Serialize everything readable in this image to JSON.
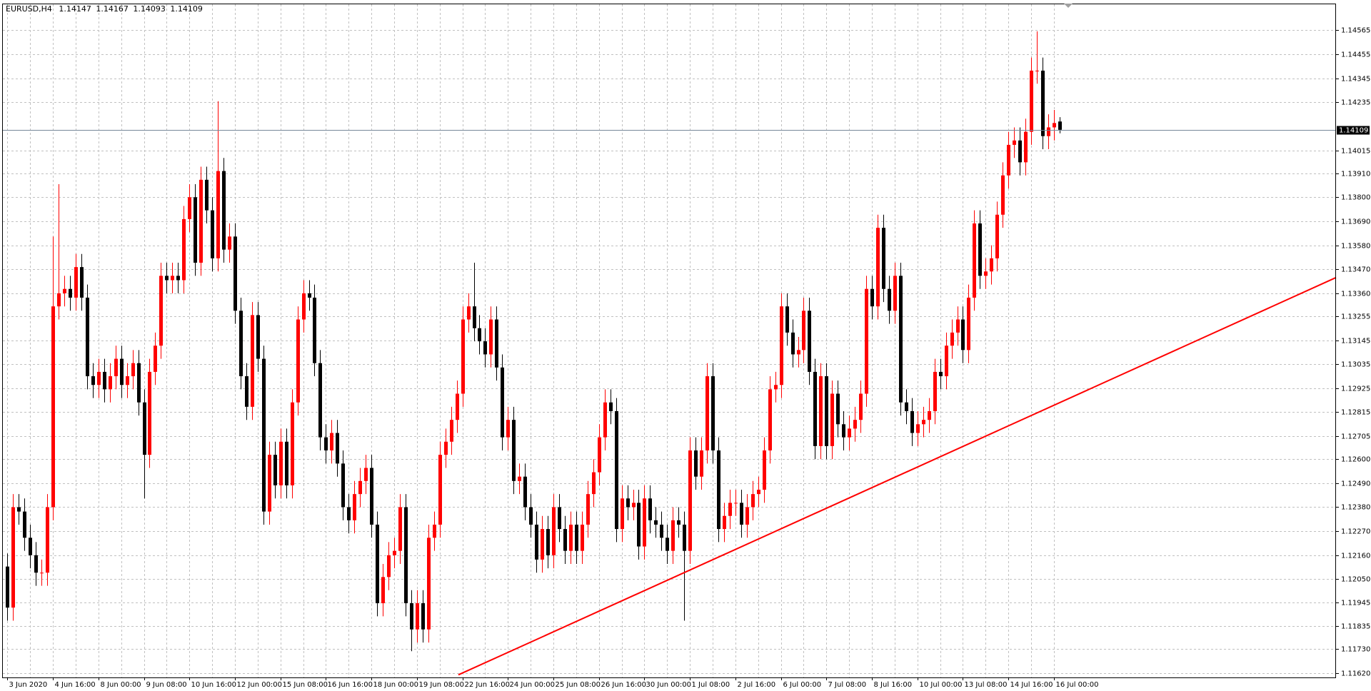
{
  "chart_data": {
    "type": "candlestick",
    "title": "EURUSD,H4",
    "up_color": "#ff0000",
    "down_color": "#000000",
    "grid": true,
    "grid_color": "#c0c0c0",
    "price_line_color": "#778899",
    "categories": [
      "3 Jun 2020",
      null,
      null,
      null,
      null,
      null,
      null,
      null,
      "4 Jun 16:00",
      null,
      null,
      null,
      null,
      null,
      null,
      null,
      "8 Jun 00:00",
      null,
      null,
      null,
      null,
      null,
      null,
      null,
      "9 Jun 08:00",
      null,
      null,
      null,
      null,
      null,
      null,
      null,
      "10 Jun 16:00",
      null,
      null,
      null,
      null,
      null,
      null,
      null,
      "12 Jun 00:00",
      null,
      null,
      null,
      null,
      null,
      null,
      null,
      "15 Jun 08:00",
      null,
      null,
      null,
      null,
      null,
      null,
      null,
      "16 Jun 16:00",
      null,
      null,
      null,
      null,
      null,
      null,
      null,
      "18 Jun 00:00",
      null,
      null,
      null,
      null,
      null,
      null,
      null,
      "19 Jun 08:00",
      null,
      null,
      null,
      null,
      null,
      null,
      null,
      "22 Jun 16:00",
      null,
      null,
      null,
      null,
      null,
      null,
      null,
      "24 Jun 00:00",
      null,
      null,
      null,
      null,
      null,
      null,
      null,
      "25 Jun 08:00",
      null,
      null,
      null,
      null,
      null,
      null,
      null,
      "26 Jun 16:00",
      null,
      null,
      null,
      null,
      null,
      null,
      null,
      "30 Jun 00:00",
      null,
      null,
      null,
      null,
      null,
      null,
      null,
      "1 Jul 08:00",
      null,
      null,
      null,
      null,
      null,
      null,
      null,
      "2 Jul 16:00",
      null,
      null,
      null,
      null,
      null,
      null,
      null,
      "6 Jul 00:00",
      null,
      null,
      null,
      null,
      null,
      null,
      null,
      "7 Jul 08:00",
      null,
      null,
      null,
      null,
      null,
      null,
      null,
      "8 Jul 16:00",
      null,
      null,
      null,
      null,
      null,
      null,
      null,
      "10 Jul 00:00",
      null,
      null,
      null,
      null,
      null,
      null,
      null,
      "13 Jul 08:00",
      null,
      null,
      null,
      null,
      null,
      null,
      null,
      "14 Jul 16:00",
      null,
      null,
      null,
      null,
      null,
      null,
      null,
      "16 Jul 00:00",
      null
    ],
    "open": [
      1.12108,
      1.1192,
      1.1238,
      1.1236,
      1.1224,
      1.1216,
      1.1208,
      1.1208,
      1.1238,
      1.133,
      1.1336,
      1.1338,
      1.1334,
      1.1348,
      1.1334,
      1.1298,
      1.1294,
      1.13,
      1.1292,
      1.1298,
      1.1306,
      1.1294,
      1.1298,
      1.1304,
      1.1286,
      1.1262,
      1.13,
      1.1312,
      1.1344,
      1.1342,
      1.1344,
      1.1342,
      1.137,
      1.138,
      1.135,
      1.1388,
      1.1374,
      1.1352,
      1.1392,
      1.1356,
      1.1362,
      1.1328,
      1.1298,
      1.1284,
      1.1326,
      1.1306,
      1.1236,
      1.1262,
      1.1248,
      1.1268,
      1.1248,
      1.1286,
      1.1324,
      1.1336,
      1.1334,
      1.1304,
      1.127,
      1.1264,
      1.1272,
      1.1258,
      1.1238,
      1.1232,
      1.1244,
      1.125,
      1.1256,
      1.123,
      1.1194,
      1.1206,
      1.1216,
      1.1218,
      1.1238,
      1.1194,
      1.1182,
      1.1194,
      1.1182,
      1.1224,
      1.123,
      1.1262,
      1.1268,
      1.1278,
      1.129,
      1.1324,
      1.133,
      1.132,
      1.1314,
      1.1308,
      1.1324,
      1.1302,
      1.127,
      1.1278,
      1.125,
      1.1252,
      1.1238,
      1.123,
      1.1214,
      1.1228,
      1.1216,
      1.1238,
      1.1228,
      1.1218,
      1.123,
      1.1218,
      1.123,
      1.1244,
      1.1254,
      1.127,
      1.1286,
      1.1282,
      1.1228,
      1.1242,
      1.1238,
      1.124,
      1.122,
      1.1242,
      1.1232,
      1.123,
      1.1224,
      1.1218,
      1.1232,
      1.123,
      1.1218,
      1.1264,
      1.1252,
      1.1264,
      1.1298,
      1.1264,
      1.1228,
      1.1234,
      1.124,
      1.124,
      1.123,
      1.1238,
      1.1244,
      1.1246,
      1.1264,
      1.1292,
      1.1294,
      1.133,
      1.1318,
      1.1308,
      1.131,
      1.1328,
      1.13,
      1.1266,
      1.1298,
      1.1266,
      1.129,
      1.1276,
      1.127,
      1.1274,
      1.1278,
      1.129,
      1.1338,
      1.133,
      1.1366,
      1.1338,
      1.1328,
      1.1344,
      1.1286,
      1.1282,
      1.1272,
      1.1276,
      1.1278,
      1.1282,
      1.13,
      1.1298,
      1.1312,
      1.1318,
      1.1324,
      1.131,
      1.1334,
      1.1368,
      1.1344,
      1.1346,
      1.1352,
      1.1372,
      1.139,
      1.1404,
      1.1406,
      1.1396,
      1.141,
      1.1438,
      1.1438,
      1.1408,
      1.1412,
      1.14147
    ],
    "high": [
      1.12168,
      1.1244,
      1.1244,
      1.1242,
      1.123,
      1.1222,
      1.1214,
      1.1244,
      1.1362,
      1.1386,
      1.1344,
      1.1344,
      1.1354,
      1.1354,
      1.134,
      1.1304,
      1.1306,
      1.1306,
      1.1304,
      1.1312,
      1.1312,
      1.1304,
      1.131,
      1.131,
      1.1292,
      1.1306,
      1.1318,
      1.135,
      1.135,
      1.135,
      1.135,
      1.1376,
      1.1386,
      1.1386,
      1.1394,
      1.1394,
      1.138,
      1.1424,
      1.1398,
      1.1368,
      1.1368,
      1.1334,
      1.1304,
      1.1332,
      1.1332,
      1.1312,
      1.1268,
      1.1268,
      1.1274,
      1.1274,
      1.1292,
      1.133,
      1.1342,
      1.1342,
      1.134,
      1.131,
      1.1276,
      1.1278,
      1.1278,
      1.1264,
      1.1244,
      1.125,
      1.1256,
      1.1262,
      1.1262,
      1.1236,
      1.1212,
      1.1222,
      1.1224,
      1.1244,
      1.1244,
      1.12,
      1.12,
      1.12,
      1.123,
      1.1236,
      1.1268,
      1.1274,
      1.1284,
      1.1296,
      1.133,
      1.1336,
      1.135,
      1.1326,
      1.132,
      1.133,
      1.133,
      1.1308,
      1.1284,
      1.1284,
      1.1258,
      1.1258,
      1.1244,
      1.1236,
      1.1234,
      1.1234,
      1.1244,
      1.1244,
      1.1234,
      1.1236,
      1.1236,
      1.1236,
      1.125,
      1.126,
      1.1276,
      1.1292,
      1.1292,
      1.1288,
      1.1248,
      1.1248,
      1.1246,
      1.1246,
      1.1248,
      1.1248,
      1.1238,
      1.1236,
      1.123,
      1.1238,
      1.1238,
      1.1236,
      1.127,
      1.127,
      1.127,
      1.1304,
      1.1304,
      1.127,
      1.124,
      1.1246,
      1.1246,
      1.1246,
      1.1244,
      1.125,
      1.1252,
      1.127,
      1.1298,
      1.13,
      1.1336,
      1.1336,
      1.1324,
      1.1316,
      1.1334,
      1.1334,
      1.1306,
      1.1304,
      1.1304,
      1.1296,
      1.1296,
      1.1282,
      1.128,
      1.1284,
      1.1296,
      1.1344,
      1.1344,
      1.1372,
      1.1372,
      1.1344,
      1.135,
      1.135,
      1.1292,
      1.1288,
      1.1282,
      1.1284,
      1.1288,
      1.1306,
      1.1306,
      1.1318,
      1.1324,
      1.133,
      1.133,
      1.134,
      1.1374,
      1.1374,
      1.1352,
      1.1358,
      1.1378,
      1.1396,
      1.141,
      1.1412,
      1.1412,
      1.1416,
      1.1444,
      1.1456,
      1.1444,
      1.1418,
      1.142,
      1.14167
    ],
    "low": [
      1.1186,
      1.1186,
      1.123,
      1.1218,
      1.121,
      1.1202,
      1.1202,
      1.1202,
      1.1232,
      1.1324,
      1.133,
      1.1328,
      1.1328,
      1.1328,
      1.1292,
      1.1288,
      1.1288,
      1.1286,
      1.1286,
      1.1292,
      1.1288,
      1.1288,
      1.1292,
      1.128,
      1.1242,
      1.1256,
      1.1294,
      1.1306,
      1.1336,
      1.1336,
      1.1336,
      1.1336,
      1.1364,
      1.1344,
      1.1344,
      1.1368,
      1.1346,
      1.1346,
      1.135,
      1.135,
      1.1322,
      1.1292,
      1.1278,
      1.1278,
      1.13,
      1.123,
      1.123,
      1.1242,
      1.1242,
      1.1242,
      1.1242,
      1.128,
      1.1318,
      1.1328,
      1.1298,
      1.1264,
      1.1258,
      1.1258,
      1.1252,
      1.1232,
      1.1226,
      1.1226,
      1.1238,
      1.1244,
      1.1224,
      1.1188,
      1.1188,
      1.12,
      1.121,
      1.1212,
      1.1188,
      1.1172,
      1.1176,
      1.1176,
      1.1176,
      1.1218,
      1.1224,
      1.1256,
      1.1262,
      1.1272,
      1.1284,
      1.1318,
      1.1314,
      1.1308,
      1.1302,
      1.1302,
      1.1296,
      1.1264,
      1.1264,
      1.1244,
      1.1244,
      1.1232,
      1.1224,
      1.1208,
      1.1208,
      1.121,
      1.121,
      1.1222,
      1.1212,
      1.1212,
      1.1212,
      1.1212,
      1.1224,
      1.1238,
      1.1248,
      1.1264,
      1.1276,
      1.1222,
      1.1222,
      1.1232,
      1.1232,
      1.1214,
      1.1214,
      1.1226,
      1.1224,
      1.1218,
      1.1212,
      1.1212,
      1.1224,
      1.1186,
      1.1212,
      1.1246,
      1.1246,
      1.1258,
      1.1258,
      1.1222,
      1.1222,
      1.1228,
      1.1234,
      1.1224,
      1.1224,
      1.1232,
      1.1238,
      1.124,
      1.1258,
      1.1286,
      1.1288,
      1.1312,
      1.1302,
      1.1302,
      1.1304,
      1.1294,
      1.126,
      1.126,
      1.126,
      1.126,
      1.127,
      1.1264,
      1.1264,
      1.1268,
      1.1272,
      1.1284,
      1.1324,
      1.1324,
      1.1332,
      1.1322,
      1.1322,
      1.128,
      1.1276,
      1.1266,
      1.1266,
      1.127,
      1.1272,
      1.1276,
      1.1292,
      1.1292,
      1.1306,
      1.1312,
      1.1304,
      1.1304,
      1.1328,
      1.1338,
      1.1338,
      1.134,
      1.1346,
      1.1366,
      1.1384,
      1.1398,
      1.139,
      1.139,
      1.1404,
      1.1432,
      1.1402,
      1.1402,
      1.1406,
      1.14093
    ],
    "close": [
      1.1192,
      1.1238,
      1.1236,
      1.1224,
      1.1216,
      1.1208,
      1.1208,
      1.1238,
      1.133,
      1.1336,
      1.1338,
      1.1334,
      1.1348,
      1.1334,
      1.1298,
      1.1294,
      1.13,
      1.1292,
      1.1298,
      1.1306,
      1.1294,
      1.1298,
      1.1304,
      1.1286,
      1.1262,
      1.13,
      1.1312,
      1.1344,
      1.1342,
      1.1344,
      1.1342,
      1.137,
      1.138,
      1.135,
      1.1388,
      1.1374,
      1.1352,
      1.1392,
      1.1356,
      1.1362,
      1.1328,
      1.1298,
      1.1284,
      1.1326,
      1.1306,
      1.1236,
      1.1262,
      1.1248,
      1.1268,
      1.1248,
      1.1286,
      1.1324,
      1.1336,
      1.1334,
      1.1304,
      1.127,
      1.1264,
      1.1272,
      1.1258,
      1.1238,
      1.1232,
      1.1244,
      1.125,
      1.1256,
      1.123,
      1.1194,
      1.1206,
      1.1216,
      1.1218,
      1.1238,
      1.1194,
      1.1182,
      1.1194,
      1.1182,
      1.1224,
      1.123,
      1.1262,
      1.1268,
      1.1278,
      1.129,
      1.1324,
      1.133,
      1.132,
      1.1314,
      1.1308,
      1.1324,
      1.1302,
      1.127,
      1.1278,
      1.125,
      1.1252,
      1.1238,
      1.123,
      1.1214,
      1.1228,
      1.1216,
      1.1238,
      1.1228,
      1.1218,
      1.123,
      1.1218,
      1.123,
      1.1244,
      1.1254,
      1.127,
      1.1286,
      1.1282,
      1.1228,
      1.1242,
      1.1238,
      1.124,
      1.122,
      1.1242,
      1.1232,
      1.123,
      1.1224,
      1.1218,
      1.1232,
      1.123,
      1.1218,
      1.1264,
      1.1252,
      1.1264,
      1.1298,
      1.1264,
      1.1228,
      1.1234,
      1.124,
      1.124,
      1.123,
      1.1238,
      1.1244,
      1.1246,
      1.1264,
      1.1292,
      1.1294,
      1.133,
      1.1318,
      1.1308,
      1.131,
      1.1328,
      1.13,
      1.1266,
      1.1298,
      1.1266,
      1.129,
      1.1276,
      1.127,
      1.1274,
      1.1278,
      1.129,
      1.1338,
      1.133,
      1.1366,
      1.1338,
      1.1328,
      1.1344,
      1.1286,
      1.1282,
      1.1272,
      1.1276,
      1.1278,
      1.1282,
      1.13,
      1.1298,
      1.1312,
      1.1318,
      1.1324,
      1.131,
      1.1334,
      1.1368,
      1.1344,
      1.1346,
      1.1352,
      1.1372,
      1.139,
      1.1404,
      1.1406,
      1.1396,
      1.141,
      1.1438,
      1.1438,
      1.1408,
      1.1412,
      1.1414,
      1.14109
    ],
    "xlim": [
      -0.8,
      233.6
    ],
    "ylim": [
      1.116,
      1.14684
    ],
    "yticks": [
      1.14565,
      1.14455,
      1.14345,
      1.14235,
      1.14015,
      {
        "value": 1.1391,
        "label": "1.13910"
      },
      {
        "value": 1.138,
        "label": "1.13800"
      },
      {
        "value": 1.1369,
        "label": "1.13690"
      },
      {
        "value": 1.1358,
        "label": "1.13580"
      },
      {
        "value": 1.1347,
        "label": "1.13470"
      },
      {
        "value": 1.1336,
        "label": "1.13360"
      },
      1.13255,
      1.13145,
      1.13035,
      1.12925,
      1.12815,
      1.12705,
      {
        "value": 1.126,
        "label": "1.12600"
      },
      {
        "value": 1.1249,
        "label": "1.12490"
      },
      {
        "value": 1.1238,
        "label": "1.12380"
      },
      {
        "value": 1.1227,
        "label": "1.12270"
      },
      {
        "value": 1.1216,
        "label": "1.12160"
      },
      {
        "value": 1.1205,
        "label": "1.12050"
      },
      1.11945,
      1.11835,
      {
        "value": 1.1173,
        "label": "1.11730"
      },
      {
        "value": 1.1162,
        "label": "1.11620"
      }
    ],
    "trendline": {
      "x": [
        79.3,
        233.6
      ],
      "y": [
        1.11612,
        1.13432
      ],
      "color": "#ff0000"
    }
  }
}
